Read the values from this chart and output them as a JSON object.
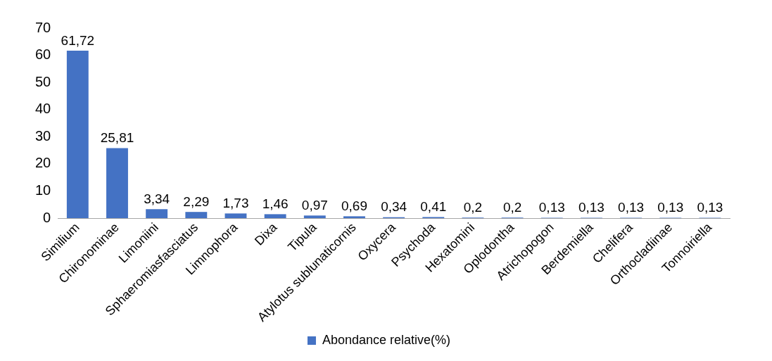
{
  "chart_data": {
    "type": "bar",
    "categories": [
      "Similium",
      "Chironominae",
      "Limoniini",
      "Sphaeromiasfasciatus",
      "Limnophora",
      "Dixa",
      "Tipula",
      "Atylotus sublunaticornis",
      "Oxycera",
      "Psychoda",
      "Hexatomini",
      "Oplodontha",
      "Atrichopogon",
      "Berdemiella",
      "Chelifera",
      "Orthocladiinae",
      "Tonnoiriella"
    ],
    "series": [
      {
        "name": "Abondance relative(%)",
        "color": "#4472c4",
        "values": [
          61.72,
          25.81,
          3.34,
          2.29,
          1.73,
          1.46,
          0.97,
          0.69,
          0.34,
          0.41,
          0.2,
          0.2,
          0.13,
          0.13,
          0.13,
          0.13,
          0.13
        ],
        "value_labels": [
          "61,72",
          "25,81",
          "3,34",
          "2,29",
          "1,73",
          "1,46",
          "0,97",
          "0,69",
          "0,34",
          "0,41",
          "0,2",
          "0,2",
          "0,13",
          "0,13",
          "0,13",
          "0,13",
          "0,13"
        ]
      }
    ],
    "ylim": [
      0,
      70
    ],
    "yticks": [
      0,
      10,
      20,
      30,
      40,
      50,
      60,
      70
    ],
    "grid": false,
    "legend": "bottom"
  }
}
